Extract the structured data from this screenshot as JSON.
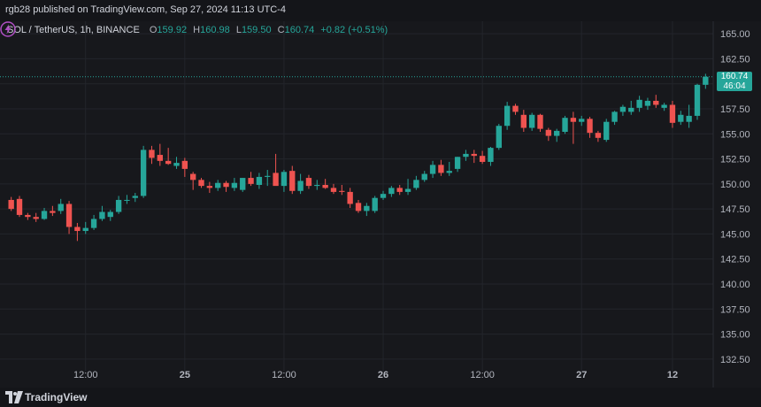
{
  "header": {
    "publish_line": "rgb28 published on TradingView.com, Sep 27, 2024 11:13 UTC-4"
  },
  "legend": {
    "symbol": "SOL / TetherUS, 1h, BINANCE",
    "o_label": "O",
    "o_value": "159.92",
    "h_label": "H",
    "h_value": "160.98",
    "l_label": "L",
    "l_value": "159.50",
    "c_label": "C",
    "c_value": "160.74",
    "change": "+0.82 (+0.51%)"
  },
  "last_price": {
    "value": "160.74",
    "countdown": "46:04"
  },
  "footer": {
    "brand": "TradingView"
  },
  "colors": {
    "up": "#26a69a",
    "down": "#ef5350",
    "grid": "#23252b",
    "axis_text": "#b2b5be"
  },
  "chart_data": {
    "type": "candlestick",
    "y_ticks": [
      "165.00",
      "162.50",
      "160.00",
      "157.50",
      "155.00",
      "152.50",
      "150.00",
      "147.50",
      "145.00",
      "142.50",
      "140.00",
      "137.50",
      "135.00",
      "132.50"
    ],
    "ylim": [
      131.25,
      166.25
    ],
    "x_ticks": [
      {
        "label": "12:00",
        "index": 9
      },
      {
        "label": "25",
        "index": 21
      },
      {
        "label": "12:00",
        "index": 33
      },
      {
        "label": "26",
        "index": 45
      },
      {
        "label": "12:00",
        "index": 57
      },
      {
        "label": "27",
        "index": 69
      },
      {
        "label": "12",
        "index": 80
      }
    ],
    "candles": [
      [
        148.4,
        148.7,
        147.3,
        147.5
      ],
      [
        148.5,
        148.8,
        146.7,
        146.9
      ],
      [
        146.9,
        147.1,
        146.4,
        146.7
      ],
      [
        146.7,
        147.1,
        146.2,
        146.5
      ],
      [
        146.5,
        147.6,
        146.4,
        147.3
      ],
      [
        147.3,
        147.8,
        146.8,
        147.1
      ],
      [
        147.3,
        148.5,
        147.0,
        148.0
      ],
      [
        148.0,
        148.3,
        145.0,
        145.7
      ],
      [
        145.7,
        146.1,
        144.3,
        145.3
      ],
      [
        145.3,
        146.2,
        145.0,
        145.6
      ],
      [
        145.6,
        146.9,
        145.4,
        146.5
      ],
      [
        146.5,
        147.8,
        146.3,
        147.2
      ],
      [
        146.7,
        147.4,
        146.3,
        147.2
      ],
      [
        147.2,
        148.8,
        147.0,
        148.4
      ],
      [
        148.4,
        148.9,
        148.0,
        148.4
      ],
      [
        148.6,
        149.1,
        148.2,
        148.8
      ],
      [
        148.8,
        153.8,
        148.6,
        153.4
      ],
      [
        153.4,
        153.8,
        152.0,
        152.6
      ],
      [
        152.9,
        154.0,
        151.8,
        152.3
      ],
      [
        152.3,
        153.6,
        151.9,
        152.0
      ],
      [
        151.8,
        152.7,
        151.5,
        152.1
      ],
      [
        152.3,
        152.6,
        150.7,
        151.5
      ],
      [
        151.0,
        151.2,
        149.4,
        150.4
      ],
      [
        150.4,
        150.6,
        149.6,
        149.8
      ],
      [
        149.8,
        150.2,
        149.1,
        149.6
      ],
      [
        149.6,
        150.4,
        149.3,
        150.1
      ],
      [
        150.1,
        150.3,
        149.2,
        149.7
      ],
      [
        149.6,
        150.6,
        149.3,
        150.1
      ],
      [
        149.4,
        150.6,
        149.2,
        150.6
      ],
      [
        150.6,
        151.2,
        149.8,
        150.0
      ],
      [
        149.9,
        151.1,
        149.5,
        150.7
      ],
      [
        150.7,
        151.4,
        149.8,
        150.8
      ],
      [
        151.1,
        153.0,
        149.9,
        149.8
      ],
      [
        149.8,
        151.4,
        149.2,
        151.2
      ],
      [
        151.3,
        151.8,
        149.0,
        149.3
      ],
      [
        149.3,
        151.0,
        149.0,
        150.3
      ],
      [
        150.6,
        150.9,
        149.5,
        149.8
      ],
      [
        149.8,
        150.4,
        149.4,
        149.9
      ],
      [
        149.9,
        150.5,
        149.5,
        149.6
      ],
      [
        149.6,
        150.0,
        149.0,
        149.2
      ],
      [
        149.3,
        149.9,
        148.9,
        149.2
      ],
      [
        149.2,
        149.6,
        147.6,
        148.0
      ],
      [
        148.1,
        148.4,
        147.1,
        147.3
      ],
      [
        147.3,
        148.1,
        146.8,
        147.8
      ],
      [
        147.3,
        148.8,
        147.1,
        148.6
      ],
      [
        148.6,
        149.3,
        148.4,
        149.0
      ],
      [
        149.0,
        149.8,
        148.7,
        149.6
      ],
      [
        149.6,
        149.9,
        148.9,
        149.2
      ],
      [
        149.2,
        150.5,
        148.9,
        149.5
      ],
      [
        149.6,
        150.8,
        149.4,
        150.4
      ],
      [
        150.4,
        151.3,
        150.2,
        151.0
      ],
      [
        151.0,
        152.3,
        150.6,
        151.9
      ],
      [
        151.9,
        152.4,
        150.8,
        151.1
      ],
      [
        151.1,
        152.2,
        150.8,
        151.3
      ],
      [
        151.5,
        152.7,
        151.2,
        152.7
      ],
      [
        152.7,
        153.4,
        152.3,
        153.0
      ],
      [
        153.0,
        153.4,
        152.1,
        152.8
      ],
      [
        152.8,
        153.3,
        152.0,
        152.2
      ],
      [
        152.2,
        153.7,
        151.8,
        153.6
      ],
      [
        153.6,
        156.0,
        153.4,
        155.8
      ],
      [
        155.8,
        158.2,
        155.4,
        157.8
      ],
      [
        157.8,
        158.0,
        156.9,
        157.2
      ],
      [
        156.9,
        157.4,
        155.2,
        155.6
      ],
      [
        155.6,
        157.1,
        155.3,
        156.9
      ],
      [
        156.9,
        157.0,
        155.2,
        155.5
      ],
      [
        155.4,
        155.6,
        154.3,
        154.8
      ],
      [
        154.8,
        155.5,
        154.2,
        155.3
      ],
      [
        155.2,
        156.8,
        155.0,
        156.6
      ],
      [
        156.6,
        157.2,
        154.0,
        156.2
      ],
      [
        156.2,
        156.8,
        155.8,
        156.5
      ],
      [
        156.5,
        156.7,
        154.6,
        155.1
      ],
      [
        155.1,
        155.3,
        154.2,
        154.6
      ],
      [
        154.4,
        156.5,
        154.2,
        156.2
      ],
      [
        156.2,
        157.3,
        155.9,
        157.2
      ],
      [
        157.2,
        157.9,
        156.8,
        157.7
      ],
      [
        157.2,
        158.3,
        156.9,
        157.6
      ],
      [
        157.6,
        158.8,
        157.2,
        158.4
      ],
      [
        157.8,
        158.6,
        157.4,
        158.3
      ],
      [
        158.3,
        158.9,
        157.6,
        157.9
      ],
      [
        157.6,
        158.1,
        157.3,
        157.9
      ],
      [
        157.9,
        158.3,
        155.6,
        156.1
      ],
      [
        156.2,
        157.3,
        155.9,
        156.9
      ],
      [
        156.2,
        157.9,
        155.6,
        156.8
      ],
      [
        156.8,
        160.0,
        156.4,
        159.9
      ],
      [
        159.9,
        161.0,
        159.5,
        160.7
      ]
    ]
  }
}
